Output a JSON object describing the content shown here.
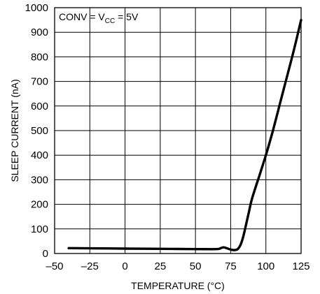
{
  "chart_data": {
    "type": "line",
    "xlabel": "TEMPERATURE (°C)",
    "ylabel": "SLEEP CURRENT (nA)",
    "xlim": [
      -50,
      125
    ],
    "ylim": [
      0,
      1000
    ],
    "x_ticks": [
      -50,
      -25,
      0,
      25,
      50,
      75,
      100,
      125
    ],
    "x_tick_labels": [
      "–50",
      "–25",
      "0",
      "25",
      "50",
      "75",
      "100",
      "125"
    ],
    "y_ticks": [
      0,
      100,
      200,
      300,
      400,
      500,
      600,
      700,
      800,
      900,
      1000
    ],
    "y_tick_labels": [
      "0",
      "100",
      "200",
      "300",
      "400",
      "500",
      "600",
      "700",
      "800",
      "900",
      "1000"
    ],
    "grid": true,
    "annotation": {
      "main": "CONV = V",
      "sub": "CC",
      "tail": " = 5V"
    },
    "series": [
      {
        "x": [
          -40,
          -25,
          0,
          25,
          50,
          65,
          68,
          70,
          72,
          75,
          78,
          80,
          82,
          84,
          86,
          88,
          90,
          95,
          100,
          105,
          110,
          115,
          120,
          125
        ],
        "y": [
          22,
          21,
          20,
          19,
          18,
          18,
          22,
          25,
          22,
          16,
          14,
          18,
          35,
          70,
          120,
          170,
          220,
          310,
          400,
          500,
          610,
          720,
          830,
          950
        ]
      }
    ]
  }
}
